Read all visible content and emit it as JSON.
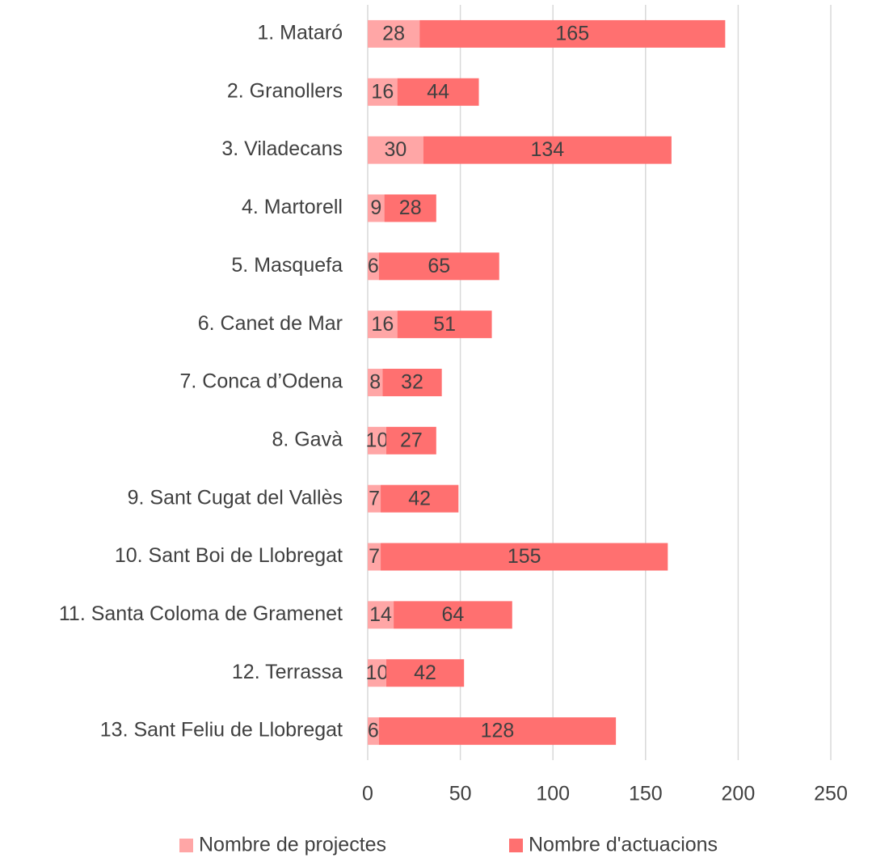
{
  "chart_data": {
    "type": "stacked-bar-horizontal",
    "categories": [
      "1. Mataró",
      "2. Granollers",
      "3. Viladecans",
      "4. Martorell",
      "5. Masquefa",
      "6. Canet de Mar",
      "7. Conca d’Odena",
      "8. Gavà",
      "9. Sant Cugat del Vallès",
      "10. Sant Boi de Llobregat",
      "11. Santa Coloma de Gramenet",
      "12. Terrassa",
      "13. Sant Feliu de Llobregat"
    ],
    "series": [
      {
        "name": "Nombre de projectes",
        "color": "#ffa6a6",
        "values": [
          28,
          16,
          30,
          9,
          6,
          16,
          8,
          10,
          7,
          7,
          14,
          10,
          6
        ]
      },
      {
        "name": "Nombre d'actuacions",
        "color": "#ff7070",
        "values": [
          165,
          44,
          134,
          28,
          65,
          51,
          32,
          27,
          42,
          155,
          64,
          42,
          128
        ]
      }
    ],
    "xlim": [
      0,
      250
    ],
    "xticks": [
      0,
      50,
      100,
      150,
      200,
      250
    ],
    "grid": true,
    "legend": "bottom"
  }
}
